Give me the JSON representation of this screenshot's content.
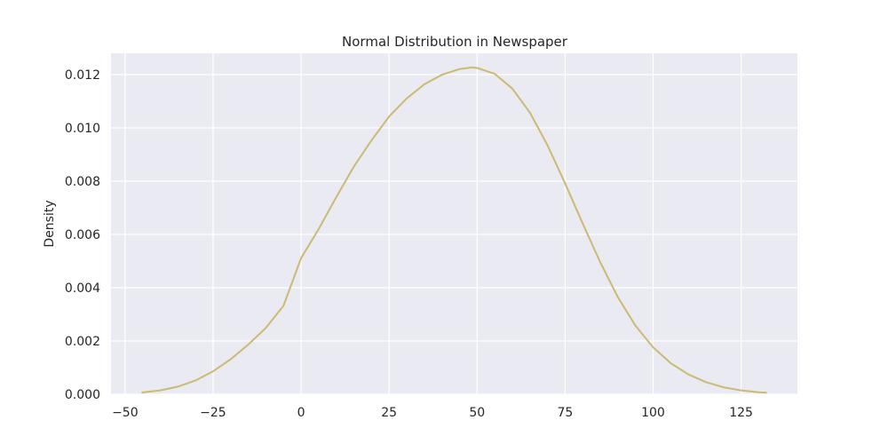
{
  "chart_data": {
    "type": "line",
    "title": "Normal Distribution in Newspaper",
    "xlabel": "",
    "ylabel": "Density",
    "xlim": [
      -54,
      141
    ],
    "ylim": [
      0,
      0.0128
    ],
    "grid": true,
    "legend": "none",
    "colors": {
      "plot_bg": "#eaeaf2",
      "grid": "#ffffff",
      "line": "#ccb974",
      "text": "#262626"
    },
    "x_ticks": [
      {
        "value": -50,
        "label": "−50"
      },
      {
        "value": -25,
        "label": "−25"
      },
      {
        "value": 0,
        "label": "0"
      },
      {
        "value": 25,
        "label": "25"
      },
      {
        "value": 50,
        "label": "50"
      },
      {
        "value": 75,
        "label": "75"
      },
      {
        "value": 100,
        "label": "100"
      },
      {
        "value": 125,
        "label": "125"
      }
    ],
    "y_ticks": [
      {
        "value": 0,
        "label": "0.000"
      },
      {
        "value": 0.002,
        "label": "0.002"
      },
      {
        "value": 0.004,
        "label": "0.004"
      },
      {
        "value": 0.006,
        "label": "0.006"
      },
      {
        "value": 0.008,
        "label": "0.008"
      },
      {
        "value": 0.01,
        "label": "0.010"
      },
      {
        "value": 0.012,
        "label": "0.012"
      }
    ],
    "series": [
      {
        "x": [
          -45.3,
          -40,
          -35,
          -30,
          -25,
          -20,
          -15,
          -10,
          -5,
          0,
          5,
          10,
          15,
          20,
          25,
          30,
          35,
          40,
          45,
          48.3,
          50,
          55,
          60,
          65,
          70,
          75,
          80,
          85,
          90,
          95,
          100,
          105,
          110,
          115,
          120,
          125,
          130,
          132.3
        ],
        "y": [
          6.8e-05,
          0.000146,
          0.000287,
          0.000518,
          0.00086,
          0.001316,
          0.001866,
          0.002494,
          0.003322,
          0.00511,
          0.006205,
          0.007401,
          0.00855,
          0.009532,
          0.010425,
          0.011106,
          0.011633,
          0.011993,
          0.012208,
          0.012267,
          0.01225,
          0.01203,
          0.011476,
          0.010574,
          0.009348,
          0.007916,
          0.00641,
          0.00495,
          0.00364,
          0.002573,
          0.001763,
          0.001169,
          0.000747,
          0.000455,
          0.000263,
          0.000144,
          7.5e-05,
          5.8e-05
        ]
      }
    ]
  }
}
